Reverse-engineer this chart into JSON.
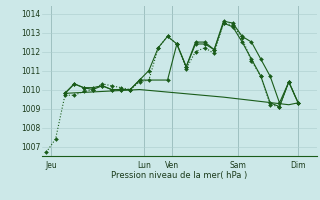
{
  "bg_color": "#cce8e8",
  "grid_color": "#aacccc",
  "line_color": "#1a5c1a",
  "xlabel": "Pression niveau de la mer( hPa )",
  "yticks": [
    1007,
    1008,
    1009,
    1010,
    1011,
    1012,
    1013,
    1014
  ],
  "ylim": [
    1006.5,
    1014.4
  ],
  "day_labels": [
    "Jeu",
    "Lun",
    "Ven",
    "Sam",
    "Dim"
  ],
  "day_positions": [
    0.5,
    10.5,
    13.5,
    20.5,
    27.0
  ],
  "xlim": [
    -0.5,
    29.0
  ],
  "series1_x": [
    0,
    1,
    2,
    3,
    4,
    5,
    6,
    7,
    8,
    9,
    10,
    11,
    12,
    13,
    14,
    15,
    16,
    17,
    18,
    19,
    20,
    21,
    22,
    23,
    24,
    25,
    26,
    27
  ],
  "series1_y": [
    1006.7,
    1007.4,
    1009.7,
    1009.7,
    1009.9,
    1010.0,
    1010.3,
    1010.2,
    1010.1,
    1010.0,
    1010.4,
    1010.5,
    1012.2,
    1012.8,
    1012.4,
    1011.1,
    1012.0,
    1012.2,
    1011.9,
    1013.5,
    1013.4,
    1012.7,
    1011.5,
    1010.7,
    1009.2,
    1009.1,
    1010.4,
    1009.3
  ],
  "series2_x": [
    2,
    3,
    4,
    5,
    6,
    7,
    8,
    9,
    10,
    11,
    12,
    13,
    14,
    15,
    16,
    17,
    18,
    19,
    20,
    21,
    22,
    23,
    24,
    25,
    26,
    27
  ],
  "series2_y": [
    1009.8,
    1010.3,
    1010.1,
    1010.1,
    1010.2,
    1010.0,
    1010.0,
    1010.0,
    1010.5,
    1011.0,
    1012.2,
    1012.8,
    1012.4,
    1011.2,
    1012.4,
    1012.4,
    1012.1,
    1013.5,
    1013.3,
    1012.5,
    1011.6,
    1010.7,
    1009.3,
    1009.1,
    1010.4,
    1009.3
  ],
  "series3_x": [
    2,
    3,
    4,
    5,
    6,
    7,
    8,
    9,
    10,
    13,
    14,
    15,
    16,
    17,
    18,
    19,
    20,
    21,
    22,
    23,
    24,
    25,
    26,
    27
  ],
  "series3_y": [
    1009.8,
    1010.3,
    1010.1,
    1010.0,
    1010.2,
    1010.0,
    1010.0,
    1010.0,
    1010.5,
    1010.5,
    1012.4,
    1011.2,
    1012.5,
    1012.5,
    1012.1,
    1013.6,
    1013.5,
    1012.8,
    1012.5,
    1011.6,
    1010.7,
    1009.3,
    1010.4,
    1009.3
  ],
  "series4_x": [
    2,
    10,
    19,
    26,
    27
  ],
  "series4_y": [
    1009.8,
    1010.0,
    1009.6,
    1009.2,
    1009.3
  ],
  "vline_positions": [
    0.5,
    10.5,
    13.5,
    20.5,
    27.0
  ]
}
